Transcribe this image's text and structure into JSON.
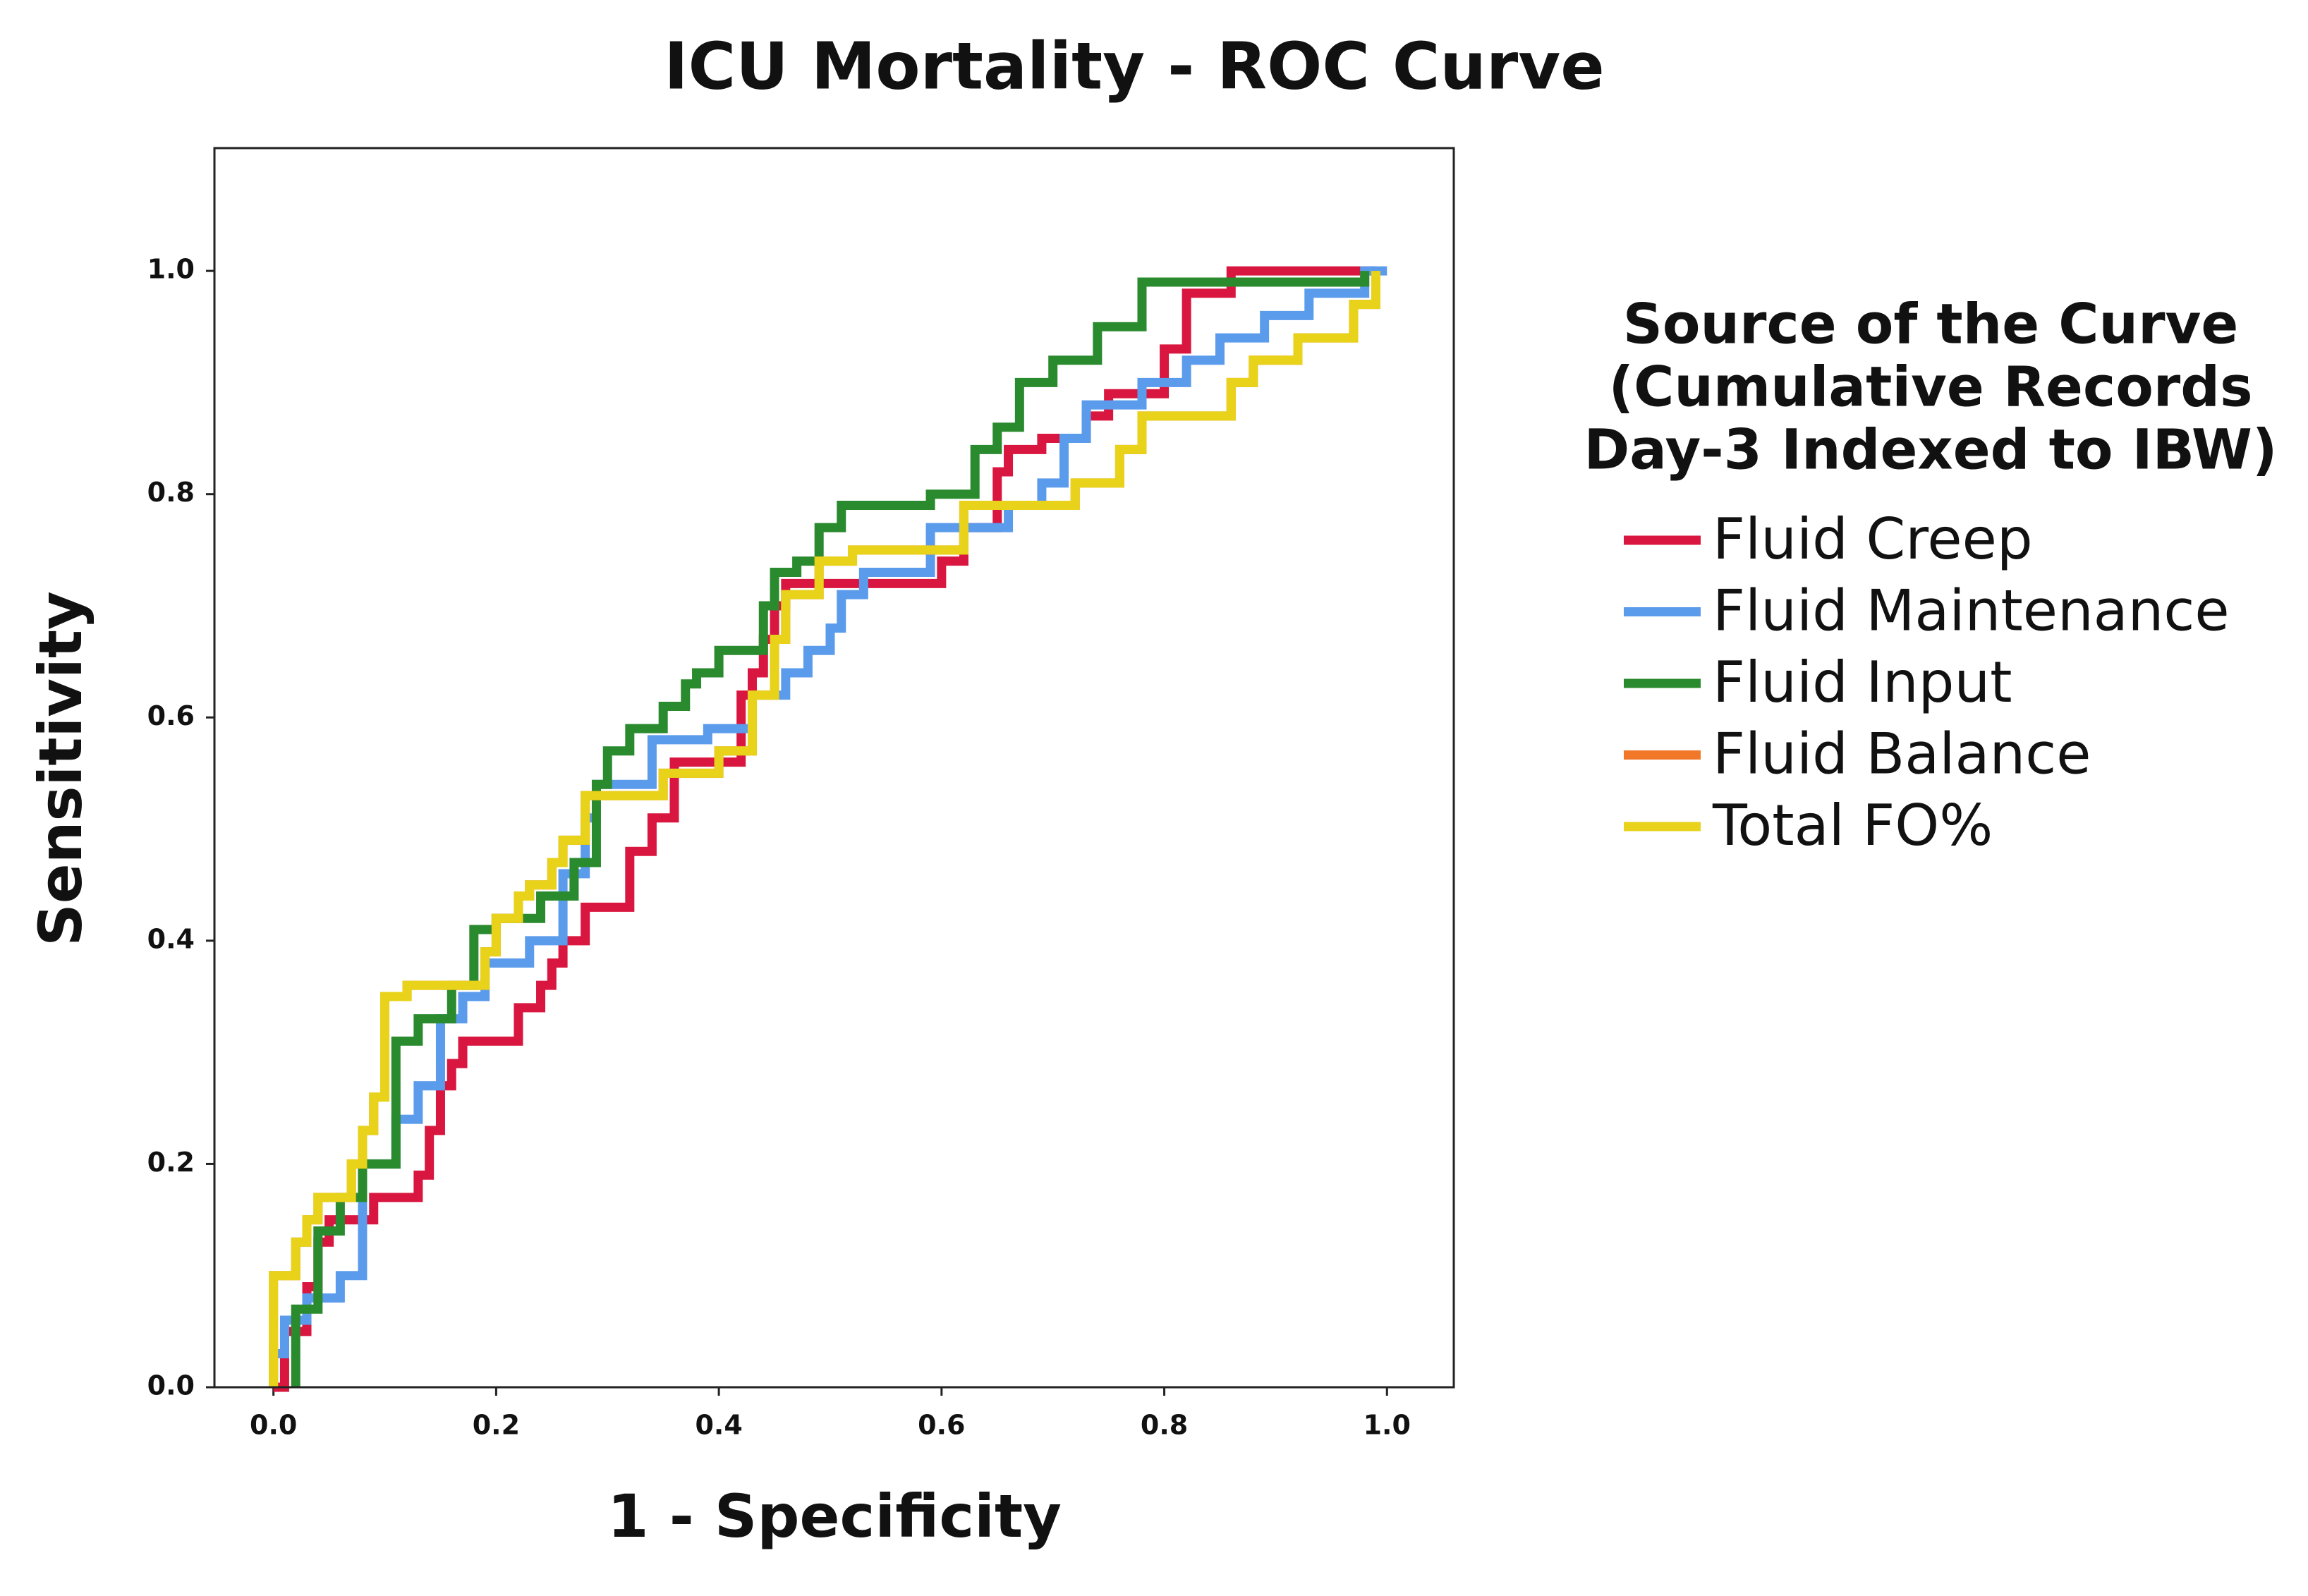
{
  "chart_data": {
    "type": "line",
    "title": "ICU Mortality - ROC Curve",
    "x_label": "1 - Specificity",
    "y_label": "Sensitivity",
    "legend_title": [
      "Source of the Curve",
      "(Cumulative Records",
      "Day-3 Indexed to IBW)"
    ],
    "legend": "right",
    "xlim": [
      -0.053,
      1.06
    ],
    "ylim": [
      0,
      1.11
    ],
    "xticks": [
      {
        "value": 0,
        "label": "0.0"
      },
      {
        "value": 0.2,
        "label": "0.2"
      },
      {
        "value": 0.4,
        "label": "0.4"
      },
      {
        "value": 0.6,
        "label": "0.6"
      },
      {
        "value": 0.8,
        "label": "0.8"
      },
      {
        "value": 1,
        "label": "1.0"
      }
    ],
    "yticks": [
      {
        "value": 0,
        "label": "0.0"
      },
      {
        "value": 0.2,
        "label": "0.2"
      },
      {
        "value": 0.4,
        "label": "0.4"
      },
      {
        "value": 0.6,
        "label": "0.6"
      },
      {
        "value": 0.8,
        "label": "0.8"
      },
      {
        "value": 1,
        "label": "1.0"
      }
    ],
    "grid": false,
    "series": [
      {
        "name": "Fluid Creep",
        "color": "#d9163f",
        "x": [
          0,
          0.01,
          0.01,
          0.03,
          0.03,
          0.04,
          0.04,
          0.05,
          0.05,
          0.09,
          0.09,
          0.13,
          0.13,
          0.14,
          0.14,
          0.15,
          0.15,
          0.16,
          0.16,
          0.17,
          0.17,
          0.22,
          0.22,
          0.24,
          0.24,
          0.25,
          0.25,
          0.26,
          0.26,
          0.28,
          0.28,
          0.32,
          0.32,
          0.34,
          0.34,
          0.36,
          0.36,
          0.42,
          0.42,
          0.43,
          0.43,
          0.44,
          0.44,
          0.45,
          0.45,
          0.46,
          0.46,
          0.6,
          0.6,
          0.62,
          0.62,
          0.65,
          0.65,
          0.66,
          0.66,
          0.69,
          0.69,
          0.73,
          0.73,
          0.75,
          0.75,
          0.8,
          0.8,
          0.82,
          0.82,
          0.86,
          0.86,
          0.99
        ],
        "values": [
          0,
          0,
          0.05,
          0.05,
          0.09,
          0.09,
          0.13,
          0.13,
          0.15,
          0.15,
          0.17,
          0.17,
          0.19,
          0.19,
          0.23,
          0.23,
          0.27,
          0.27,
          0.29,
          0.29,
          0.31,
          0.31,
          0.34,
          0.34,
          0.36,
          0.36,
          0.38,
          0.38,
          0.4,
          0.4,
          0.43,
          0.43,
          0.48,
          0.48,
          0.51,
          0.51,
          0.56,
          0.56,
          0.62,
          0.62,
          0.64,
          0.64,
          0.67,
          0.67,
          0.7,
          0.7,
          0.72,
          0.72,
          0.74,
          0.74,
          0.77,
          0.77,
          0.82,
          0.82,
          0.84,
          0.84,
          0.85,
          0.85,
          0.87,
          0.87,
          0.89,
          0.89,
          0.93,
          0.93,
          0.98,
          0.98,
          1,
          1
        ]
      },
      {
        "name": "Fluid Maintenance",
        "color": "#5b9bec",
        "x": [
          0,
          0,
          0.01,
          0.01,
          0.03,
          0.03,
          0.06,
          0.06,
          0.08,
          0.08,
          0.11,
          0.11,
          0.13,
          0.13,
          0.15,
          0.15,
          0.17,
          0.17,
          0.19,
          0.19,
          0.23,
          0.23,
          0.26,
          0.26,
          0.28,
          0.28,
          0.29,
          0.29,
          0.34,
          0.34,
          0.39,
          0.39,
          0.43,
          0.43,
          0.46,
          0.46,
          0.48,
          0.48,
          0.5,
          0.5,
          0.51,
          0.51,
          0.53,
          0.53,
          0.59,
          0.59,
          0.66,
          0.66,
          0.69,
          0.69,
          0.71,
          0.71,
          0.73,
          0.73,
          0.78,
          0.78,
          0.82,
          0.82,
          0.85,
          0.85,
          0.89,
          0.89,
          0.93,
          0.93,
          0.98,
          0.98,
          1
        ],
        "values": [
          0,
          0.03,
          0.03,
          0.06,
          0.06,
          0.08,
          0.08,
          0.1,
          0.1,
          0.2,
          0.2,
          0.24,
          0.24,
          0.27,
          0.27,
          0.33,
          0.33,
          0.35,
          0.35,
          0.38,
          0.38,
          0.4,
          0.4,
          0.46,
          0.46,
          0.51,
          0.51,
          0.54,
          0.54,
          0.58,
          0.58,
          0.59,
          0.59,
          0.62,
          0.62,
          0.64,
          0.64,
          0.66,
          0.66,
          0.68,
          0.68,
          0.71,
          0.71,
          0.73,
          0.73,
          0.77,
          0.77,
          0.79,
          0.79,
          0.81,
          0.81,
          0.85,
          0.85,
          0.88,
          0.88,
          0.9,
          0.9,
          0.92,
          0.92,
          0.94,
          0.94,
          0.96,
          0.96,
          0.98,
          0.98,
          1,
          1
        ]
      },
      {
        "name": "Fluid Input",
        "color": "#2a8a2e",
        "x": [
          0.02,
          0.02,
          0.04,
          0.04,
          0.06,
          0.06,
          0.08,
          0.08,
          0.11,
          0.11,
          0.13,
          0.13,
          0.16,
          0.16,
          0.18,
          0.18,
          0.2,
          0.2,
          0.24,
          0.24,
          0.27,
          0.27,
          0.29,
          0.29,
          0.3,
          0.3,
          0.32,
          0.32,
          0.35,
          0.35,
          0.37,
          0.37,
          0.38,
          0.38,
          0.4,
          0.4,
          0.44,
          0.44,
          0.45,
          0.45,
          0.47,
          0.47,
          0.49,
          0.49,
          0.51,
          0.51,
          0.59,
          0.59,
          0.63,
          0.63,
          0.65,
          0.65,
          0.67,
          0.67,
          0.7,
          0.7,
          0.74,
          0.74,
          0.78,
          0.78,
          0.98,
          0.98
        ],
        "values": [
          0,
          0.07,
          0.07,
          0.14,
          0.14,
          0.17,
          0.17,
          0.2,
          0.2,
          0.31,
          0.31,
          0.33,
          0.33,
          0.36,
          0.36,
          0.41,
          0.41,
          0.42,
          0.42,
          0.44,
          0.44,
          0.47,
          0.47,
          0.54,
          0.54,
          0.57,
          0.57,
          0.59,
          0.59,
          0.61,
          0.61,
          0.63,
          0.63,
          0.64,
          0.64,
          0.66,
          0.66,
          0.7,
          0.7,
          0.73,
          0.73,
          0.74,
          0.74,
          0.77,
          0.77,
          0.79,
          0.79,
          0.8,
          0.8,
          0.84,
          0.84,
          0.86,
          0.86,
          0.9,
          0.9,
          0.92,
          0.92,
          0.95,
          0.95,
          0.99,
          0.99,
          1
        ]
      },
      {
        "name": "Fluid Balance",
        "color": "#f07828",
        "x": [
          0,
          0,
          0.02,
          0.02,
          0.03,
          0.03,
          0.04,
          0.04,
          0.07,
          0.07,
          0.08,
          0.08,
          0.09,
          0.09,
          0.1,
          0.1,
          0.12,
          0.12,
          0.19,
          0.19,
          0.2,
          0.2,
          0.22,
          0.22,
          0.23,
          0.23,
          0.25,
          0.25,
          0.26,
          0.26,
          0.28,
          0.28,
          0.35,
          0.35,
          0.4,
          0.4,
          0.43,
          0.43,
          0.45,
          0.45,
          0.46,
          0.46,
          0.49,
          0.49,
          0.52,
          0.52,
          0.62,
          0.62,
          0.72,
          0.72,
          0.76,
          0.76,
          0.78,
          0.78,
          0.86,
          0.86,
          0.88,
          0.88,
          0.92,
          0.92,
          0.97,
          0.97,
          0.99,
          0.99
        ],
        "values": [
          0,
          0.1,
          0.1,
          0.13,
          0.13,
          0.15,
          0.15,
          0.17,
          0.17,
          0.2,
          0.2,
          0.23,
          0.23,
          0.26,
          0.26,
          0.35,
          0.35,
          0.36,
          0.36,
          0.39,
          0.39,
          0.42,
          0.42,
          0.44,
          0.44,
          0.45,
          0.45,
          0.47,
          0.47,
          0.49,
          0.49,
          0.53,
          0.53,
          0.55,
          0.55,
          0.57,
          0.57,
          0.62,
          0.62,
          0.67,
          0.67,
          0.71,
          0.71,
          0.74,
          0.74,
          0.75,
          0.75,
          0.79,
          0.79,
          0.81,
          0.81,
          0.84,
          0.84,
          0.87,
          0.87,
          0.9,
          0.9,
          0.92,
          0.92,
          0.94,
          0.94,
          0.97,
          0.97,
          1
        ]
      },
      {
        "name": "Total FO%",
        "color": "#e8d21a",
        "x": [
          0,
          0,
          0.02,
          0.02,
          0.03,
          0.03,
          0.04,
          0.04,
          0.07,
          0.07,
          0.08,
          0.08,
          0.09,
          0.09,
          0.1,
          0.1,
          0.12,
          0.12,
          0.19,
          0.19,
          0.2,
          0.2,
          0.22,
          0.22,
          0.23,
          0.23,
          0.25,
          0.25,
          0.26,
          0.26,
          0.28,
          0.28,
          0.35,
          0.35,
          0.4,
          0.4,
          0.43,
          0.43,
          0.45,
          0.45,
          0.46,
          0.46,
          0.49,
          0.49,
          0.52,
          0.52,
          0.62,
          0.62,
          0.72,
          0.72,
          0.76,
          0.76,
          0.78,
          0.78,
          0.86,
          0.86,
          0.88,
          0.88,
          0.92,
          0.92,
          0.97,
          0.97,
          0.99,
          0.99
        ],
        "values": [
          0,
          0.1,
          0.1,
          0.13,
          0.13,
          0.15,
          0.15,
          0.17,
          0.17,
          0.2,
          0.2,
          0.23,
          0.23,
          0.26,
          0.26,
          0.35,
          0.35,
          0.36,
          0.36,
          0.39,
          0.39,
          0.42,
          0.42,
          0.44,
          0.44,
          0.45,
          0.45,
          0.47,
          0.47,
          0.49,
          0.49,
          0.53,
          0.53,
          0.55,
          0.55,
          0.57,
          0.57,
          0.62,
          0.62,
          0.67,
          0.67,
          0.71,
          0.71,
          0.74,
          0.74,
          0.75,
          0.75,
          0.79,
          0.79,
          0.81,
          0.81,
          0.84,
          0.84,
          0.87,
          0.87,
          0.9,
          0.9,
          0.92,
          0.92,
          0.94,
          0.94,
          0.97,
          0.97,
          1
        ]
      }
    ]
  }
}
